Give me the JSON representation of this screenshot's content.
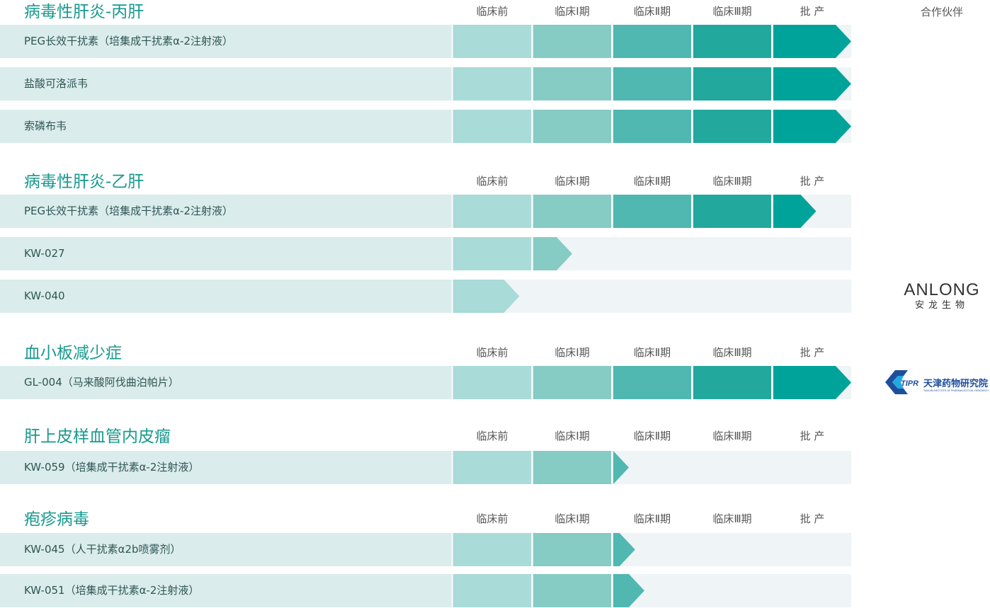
{
  "stages": [
    "临床前",
    "临床Ⅰ期",
    "临床Ⅱ期",
    "临床Ⅲ期",
    "批 产"
  ],
  "partner_header": "合作伙伴",
  "colors": {
    "title": "#179a8e",
    "label_bg": "#daeceb",
    "track_bg": "#eff4f6",
    "stage_colors": [
      "#a9dbd8",
      "#86cbc4",
      "#50b8b0",
      "#23a89d",
      "#00a39a"
    ]
  },
  "sections": [
    {
      "title": "病毒性肝炎-丙肝",
      "rows": [
        {
          "name": "PEG长效干扰素（培集成干扰素α-2注射液）",
          "progress": 5
        },
        {
          "name": "盐酸可洛派韦",
          "progress": 5
        },
        {
          "name": "索磷布韦",
          "progress": 5
        }
      ]
    },
    {
      "title": "病毒性肝炎-乙肝",
      "partner": {
        "name": "ANLONG",
        "subtitle": "安龙生物",
        "icon": "anlong-logo"
      },
      "rows": [
        {
          "name": "PEG长效干扰素（培集成干扰素α-2注射液）",
          "progress": 4.55
        },
        {
          "name": "KW-027",
          "progress": 1.5
        },
        {
          "name": "KW-040",
          "progress": 0.85
        }
      ]
    },
    {
      "title": "血小板减少症",
      "partner": {
        "name": "TIPR",
        "subtitle": "天津药物研究院",
        "caption": "TIANJIN INSTITUTE OF PHARMACEUTICAL RESEARCH",
        "icon": "tipr-logo"
      },
      "rows": [
        {
          "name": "GL-004（马来酸阿伐曲泊帕片）",
          "progress": 5
        }
      ]
    },
    {
      "title": "肝上皮样血管内皮瘤",
      "rows": [
        {
          "name": "KW-059（培集成干扰素α-2注射液）",
          "progress": 2.19
        }
      ]
    },
    {
      "title": "疱疹病毒",
      "rows": [
        {
          "name": "KW-045（人干扰素α2b喷雾剂）",
          "progress": 2.28
        },
        {
          "name": "KW-051（培集成干扰素α-2注射液）",
          "progress": 2.4
        }
      ]
    }
  ]
}
